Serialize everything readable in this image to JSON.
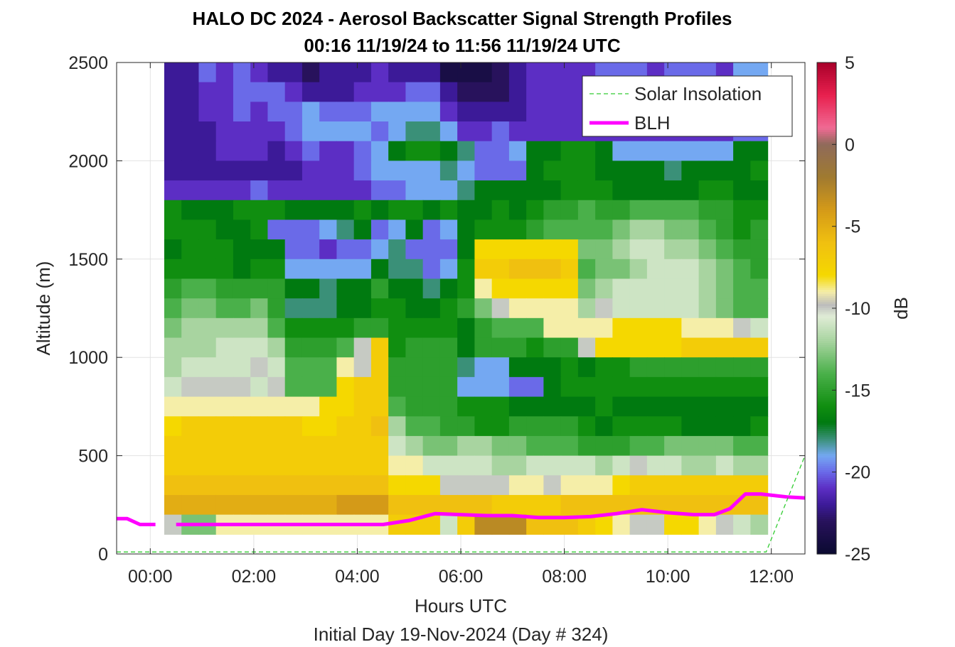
{
  "chart_data": {
    "type": "heatmap",
    "title_line1": "HALO DC 2024 - Aerosol Backscatter Signal Strength Profiles",
    "title_line2": "00:16 11/19/24 to 11:56 11/19/24  UTC",
    "xlabel": "Hours UTC",
    "xlabel2": "Initial Day 19-Nov-2024 (Day # 324)",
    "ylabel": "Altitude (m)",
    "colorbar_label": "dB",
    "xlim": [
      -0.65,
      12.65
    ],
    "ylim": [
      0,
      2500
    ],
    "x_ticks": [
      0,
      2,
      4,
      6,
      8,
      10,
      12
    ],
    "x_tick_labels": [
      "00:00",
      "02:00",
      "04:00",
      "06:00",
      "08:00",
      "10:00",
      "12:00"
    ],
    "y_ticks": [
      0,
      500,
      1000,
      1500,
      2000,
      2500
    ],
    "y_tick_labels": [
      "0",
      "500",
      "1000",
      "1500",
      "2000",
      "2500"
    ],
    "clim": [
      -25,
      5
    ],
    "colorbar_ticks": [
      5,
      0,
      -5,
      -10,
      -15,
      -20,
      -25
    ],
    "colorbar_tick_labels": [
      "5",
      "0",
      "-5",
      "-10",
      "-15",
      "-20",
      "-25"
    ],
    "grid": true,
    "legend_position": "top-right",
    "legend": [
      "Solar Insolation",
      "BLH"
    ],
    "heatmap_x_range_hours": [
      0.27,
      11.93
    ],
    "heatmap_y_range_m": [
      100,
      2500
    ],
    "columns": 35,
    "row_altitudes_m": [
      2450,
      2350,
      2250,
      2150,
      2050,
      1950,
      1850,
      1750,
      1650,
      1550,
      1450,
      1350,
      1250,
      1150,
      1050,
      950,
      850,
      750,
      650,
      550,
      450,
      350,
      250,
      150
    ],
    "dB_rows": [
      [
        -22,
        -22,
        -20,
        -21,
        -20,
        -21,
        -22,
        -22,
        -23,
        -22,
        -22,
        -22,
        -21,
        -22,
        -22,
        -22,
        -24,
        -24,
        -24,
        -23,
        -22,
        -21,
        -21,
        -21,
        -21,
        -20,
        -20,
        -20,
        -21,
        -20,
        -20,
        -20,
        -21,
        -19,
        -19
      ],
      [
        -22,
        -22,
        -21,
        -21,
        -20,
        -20,
        -20,
        -21,
        -22,
        -22,
        -22,
        -21,
        -21,
        -21,
        -20,
        -20,
        -22,
        -23,
        -23,
        -23,
        -22,
        -21,
        -21,
        -21,
        -21,
        -20,
        -20,
        -21,
        -21,
        -21,
        -21,
        -20,
        -21,
        -20,
        -19
      ],
      [
        -22,
        -22,
        -21,
        -21,
        -20,
        -21,
        -20,
        -20,
        -19,
        -20,
        -20,
        -20,
        -19,
        -19,
        -19,
        -19,
        -21,
        -22,
        -22,
        -22,
        -22,
        -21,
        -21,
        -21,
        -21,
        -20,
        -20,
        -21,
        -21,
        -21,
        -21,
        -21,
        -21,
        -20,
        -20
      ],
      [
        -22,
        -22,
        -22,
        -21,
        -21,
        -21,
        -21,
        -20,
        -19,
        -19,
        -19,
        -19,
        -20,
        -19,
        -18,
        -18,
        -19,
        -21,
        -21,
        -20,
        -21,
        -21,
        -21,
        -21,
        -21,
        -21,
        -21,
        -21,
        -21,
        -21,
        -21,
        -21,
        -21,
        -20,
        -20
      ],
      [
        -22,
        -22,
        -22,
        -21,
        -21,
        -21,
        -22,
        -21,
        -20,
        -21,
        -21,
        -20,
        -19,
        -17,
        -16,
        -16,
        -17,
        -18,
        -20,
        -20,
        -19,
        -17,
        -17,
        -16,
        -16,
        -17,
        -19,
        -19,
        -19,
        -19,
        -19,
        -19,
        -19,
        -17,
        -17
      ],
      [
        -22,
        -22,
        -22,
        -22,
        -22,
        -22,
        -22,
        -22,
        -21,
        -21,
        -21,
        -20,
        -19,
        -19,
        -19,
        -19,
        -18,
        -19,
        -20,
        -20,
        -20,
        -17,
        -16,
        -16,
        -16,
        -17,
        -17,
        -17,
        -17,
        -18,
        -17,
        -17,
        -17,
        -17,
        -16
      ],
      [
        -21,
        -21,
        -21,
        -21,
        -21,
        -20,
        -21,
        -21,
        -21,
        -21,
        -21,
        -21,
        -20,
        -20,
        -19,
        -19,
        -19,
        -18,
        -17,
        -17,
        -17,
        -17,
        -17,
        -16,
        -16,
        -16,
        -17,
        -17,
        -17,
        -17,
        -17,
        -16,
        -16,
        -17,
        -17
      ],
      [
        -16,
        -17,
        -17,
        -17,
        -16,
        -16,
        -16,
        -17,
        -17,
        -17,
        -17,
        -16,
        -17,
        -16,
        -16,
        -17,
        -16,
        -17,
        -17,
        -16,
        -17,
        -16,
        -15,
        -15,
        -14,
        -15,
        -15,
        -14,
        -14,
        -14,
        -14,
        -15,
        -15,
        -16,
        -16
      ],
      [
        -16,
        -16,
        -16,
        -17,
        -17,
        -16,
        -20,
        -20,
        -20,
        -19,
        -18,
        -17,
        -20,
        -19,
        -17,
        -20,
        -19,
        -17,
        -16,
        -16,
        -16,
        -15,
        -14,
        -14,
        -14,
        -14,
        -13,
        -12,
        -12,
        -13,
        -13,
        -14,
        -15,
        -16,
        -15
      ],
      [
        -17,
        -16,
        -16,
        -16,
        -17,
        -17,
        -17,
        -20,
        -20,
        -21,
        -20,
        -20,
        -19,
        -18,
        -20,
        -20,
        -20,
        -17,
        -8,
        -8,
        -8,
        -8,
        -8,
        -8,
        -13,
        -13,
        -12,
        -11,
        -11,
        -12,
        -12,
        -13,
        -14,
        -15,
        -15
      ],
      [
        -16,
        -16,
        -16,
        -16,
        -17,
        -16,
        -16,
        -19,
        -19,
        -19,
        -19,
        -19,
        -17,
        -18,
        -18,
        -20,
        -19,
        -16,
        -7,
        -7,
        -6,
        -6,
        -6,
        -7,
        -14,
        -13,
        -13,
        -12,
        -11,
        -11,
        -11,
        -12,
        -13,
        -14,
        -15
      ],
      [
        -15,
        -14,
        -14,
        -15,
        -15,
        -15,
        -15,
        -17,
        -17,
        -18,
        -17,
        -17,
        -15,
        -17,
        -17,
        -18,
        -17,
        -16,
        -9,
        -8,
        -8,
        -8,
        -8,
        -8,
        -13,
        -12,
        -11,
        -11,
        -11,
        -11,
        -11,
        -12,
        -13,
        -14,
        -14
      ],
      [
        -14,
        -13,
        -13,
        -14,
        -14,
        -13,
        -15,
        -18,
        -18,
        -18,
        -17,
        -17,
        -16,
        -16,
        -17,
        -17,
        -16,
        -15,
        -13,
        -10,
        -9,
        -9,
        -9,
        -9,
        -12,
        -10,
        -11,
        -11,
        -11,
        -11,
        -11,
        -12,
        -13,
        -14,
        -14
      ],
      [
        -13,
        -12,
        -12,
        -12,
        -12,
        -12,
        -14,
        -16,
        -16,
        -16,
        -16,
        -15,
        -15,
        -16,
        -16,
        -16,
        -16,
        -17,
        -15,
        -14,
        -14,
        -14,
        -9,
        -9,
        -9,
        -9,
        -8,
        -8,
        -8,
        -8,
        -9,
        -9,
        -9,
        -10,
        -11
      ],
      [
        -12,
        -12,
        -12,
        -11,
        -11,
        -11,
        -12,
        -15,
        -15,
        -15,
        -14,
        -10,
        -7,
        -16,
        -15,
        -15,
        -15,
        -17,
        -15,
        -15,
        -15,
        -16,
        -15,
        -15,
        -10,
        -8,
        -8,
        -8,
        -8,
        -8,
        -7,
        -7,
        -7,
        -7,
        -7
      ],
      [
        -12,
        -11,
        -11,
        -11,
        -11,
        -10,
        -11,
        -14,
        -14,
        -14,
        -9,
        -10,
        -7,
        -15,
        -15,
        -15,
        -15,
        -18,
        -19,
        -19,
        -17,
        -17,
        -17,
        -16,
        -17,
        -16,
        -16,
        -15,
        -15,
        -15,
        -15,
        -15,
        -15,
        -15,
        -15
      ],
      [
        -11,
        -10,
        -10,
        -10,
        -10,
        -11,
        -10,
        -14,
        -14,
        -14,
        -8,
        -7,
        -7,
        -15,
        -15,
        -15,
        -15,
        -19,
        -19,
        -19,
        -20,
        -20,
        -17,
        -16,
        -16,
        -16,
        -16,
        -16,
        -16,
        -16,
        -16,
        -16,
        -16,
        -16,
        -16
      ],
      [
        -9,
        -9,
        -9,
        -9,
        -9,
        -9,
        -9,
        -9,
        -9,
        -8,
        -8,
        -7,
        -7,
        -14,
        -15,
        -15,
        -15,
        -16,
        -16,
        -16,
        -17,
        -17,
        -17,
        -17,
        -17,
        -16,
        -17,
        -17,
        -17,
        -17,
        -17,
        -17,
        -17,
        -17,
        -17
      ],
      [
        -8,
        -7,
        -7,
        -7,
        -7,
        -7,
        -7,
        -7,
        -8,
        -8,
        -7,
        -7,
        -6,
        -12,
        -14,
        -14,
        -15,
        -15,
        -16,
        -16,
        -15,
        -15,
        -15,
        -15,
        -16,
        -17,
        -16,
        -16,
        -16,
        -16,
        -17,
        -17,
        -17,
        -17,
        -16
      ],
      [
        -7,
        -7,
        -7,
        -7,
        -7,
        -7,
        -7,
        -7,
        -7,
        -7,
        -7,
        -7,
        -7,
        -11,
        -12,
        -13,
        -13,
        -12,
        -12,
        -13,
        -13,
        -14,
        -14,
        -14,
        -15,
        -15,
        -15,
        -14,
        -14,
        -13,
        -13,
        -13,
        -13,
        -14,
        -14
      ],
      [
        -7,
        -7,
        -7,
        -7,
        -7,
        -7,
        -7,
        -7,
        -7,
        -7,
        -7,
        -7,
        -7,
        -9,
        -9,
        -11,
        -11,
        -11,
        -11,
        -12,
        -12,
        -11,
        -11,
        -11,
        -11,
        -12,
        -11,
        -10,
        -11,
        -11,
        -12,
        -12,
        -11,
        -12,
        -12
      ],
      [
        -6,
        -6,
        -6,
        -6,
        -6,
        -6,
        -6,
        -6,
        -6,
        -6,
        -6,
        -6,
        -6,
        -8,
        -8,
        -8,
        -10,
        -10,
        -10,
        -10,
        -9,
        -9,
        -10,
        -9,
        -9,
        -9,
        -8,
        -7,
        -7,
        -7,
        -7,
        -7,
        -7,
        -7,
        -7
      ],
      [
        -5,
        -5,
        -5,
        -5,
        -5,
        -5,
        -5,
        -5,
        -5,
        -5,
        -4,
        -4,
        -4,
        -6,
        -6,
        -6,
        -6,
        -6,
        -6,
        -7,
        -7,
        -7,
        -7,
        -6,
        -6,
        -6,
        -6,
        -6,
        -6,
        -6,
        -6,
        -6,
        -6,
        -6,
        -6
      ],
      [
        -10,
        -13,
        -13,
        -9,
        -9,
        -9,
        -9,
        -9,
        -9,
        -9,
        -9,
        -9,
        -9,
        -7,
        -7,
        -7,
        -11,
        -7,
        -3,
        -3,
        -3,
        -6,
        -6,
        -6,
        -7,
        -8,
        -9,
        -10,
        -10,
        -8,
        -8,
        -9,
        -10,
        -11,
        -12
      ]
    ],
    "series": [
      {
        "name": "BLH",
        "color": "#ff00ff",
        "segments": [
          {
            "x": [
              -0.65,
              -0.45,
              -0.2,
              0.1
            ],
            "y": [
              180,
              180,
              150,
              150
            ]
          },
          {
            "x": [
              0.5,
              1,
              2,
              3,
              4,
              4.5,
              5,
              5.5,
              6,
              6.5,
              7,
              7.5,
              8,
              8.5,
              9,
              9.5,
              10,
              10.5,
              10.9,
              11.2,
              11.5,
              11.8,
              12.3,
              12.65
            ],
            "y": [
              150,
              150,
              150,
              150,
              150,
              150,
              170,
              205,
              200,
              195,
              195,
              185,
              185,
              190,
              205,
              225,
              210,
              200,
              200,
              230,
              305,
              305,
              290,
              285
            ]
          }
        ]
      },
      {
        "name": "Solar Insolation",
        "color": "#33cc33",
        "x": [
          -0.65,
          11.9,
          12.65
        ],
        "y": [
          10,
          10,
          500
        ]
      }
    ]
  }
}
